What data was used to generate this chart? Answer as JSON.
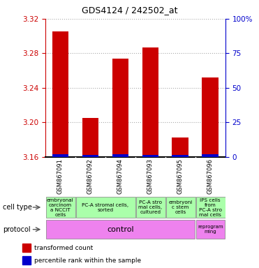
{
  "title": "GDS4124 / 242502_at",
  "samples": [
    "GSM867091",
    "GSM867092",
    "GSM867094",
    "GSM867093",
    "GSM867095",
    "GSM867096"
  ],
  "red_values": [
    3.305,
    3.205,
    3.274,
    3.287,
    3.182,
    3.252
  ],
  "blue_values": [
    3.163,
    3.162,
    3.163,
    3.162,
    3.162,
    3.163
  ],
  "baseline": 3.16,
  "ylim_left": [
    3.16,
    3.32
  ],
  "ylim_right": [
    0,
    100
  ],
  "yticks_left": [
    3.16,
    3.2,
    3.24,
    3.28,
    3.32
  ],
  "yticks_right": [
    0,
    25,
    50,
    75,
    100
  ],
  "cell_types": [
    "embryonal\ncarcinom\na NCCIT\ncells",
    "PC-A stromal cells,\nsorted",
    "PC-A stro\nmal cells,\ncultured",
    "embryoni\nc stem\ncells",
    "IPS cells\nfrom\nPC-A stro\nmal cells"
  ],
  "protocol_label": "control",
  "protocol_color": "#ee82ee",
  "reprogram_label": "reprogram\nming",
  "reprogram_color": "#ee82ee",
  "cell_type_color": "#aaffaa",
  "bar_color_red": "#cc0000",
  "bar_color_blue": "#0000cc",
  "bar_width": 0.55,
  "background_color": "#ffffff",
  "plot_bg": "#ffffff",
  "grid_color": "#aaaaaa",
  "left_axis_color": "#cc0000",
  "right_axis_color": "#0000cc",
  "sample_bg_color": "#bbbbbb",
  "label_fontsize": 7,
  "tick_fontsize": 7.5,
  "title_fontsize": 9
}
